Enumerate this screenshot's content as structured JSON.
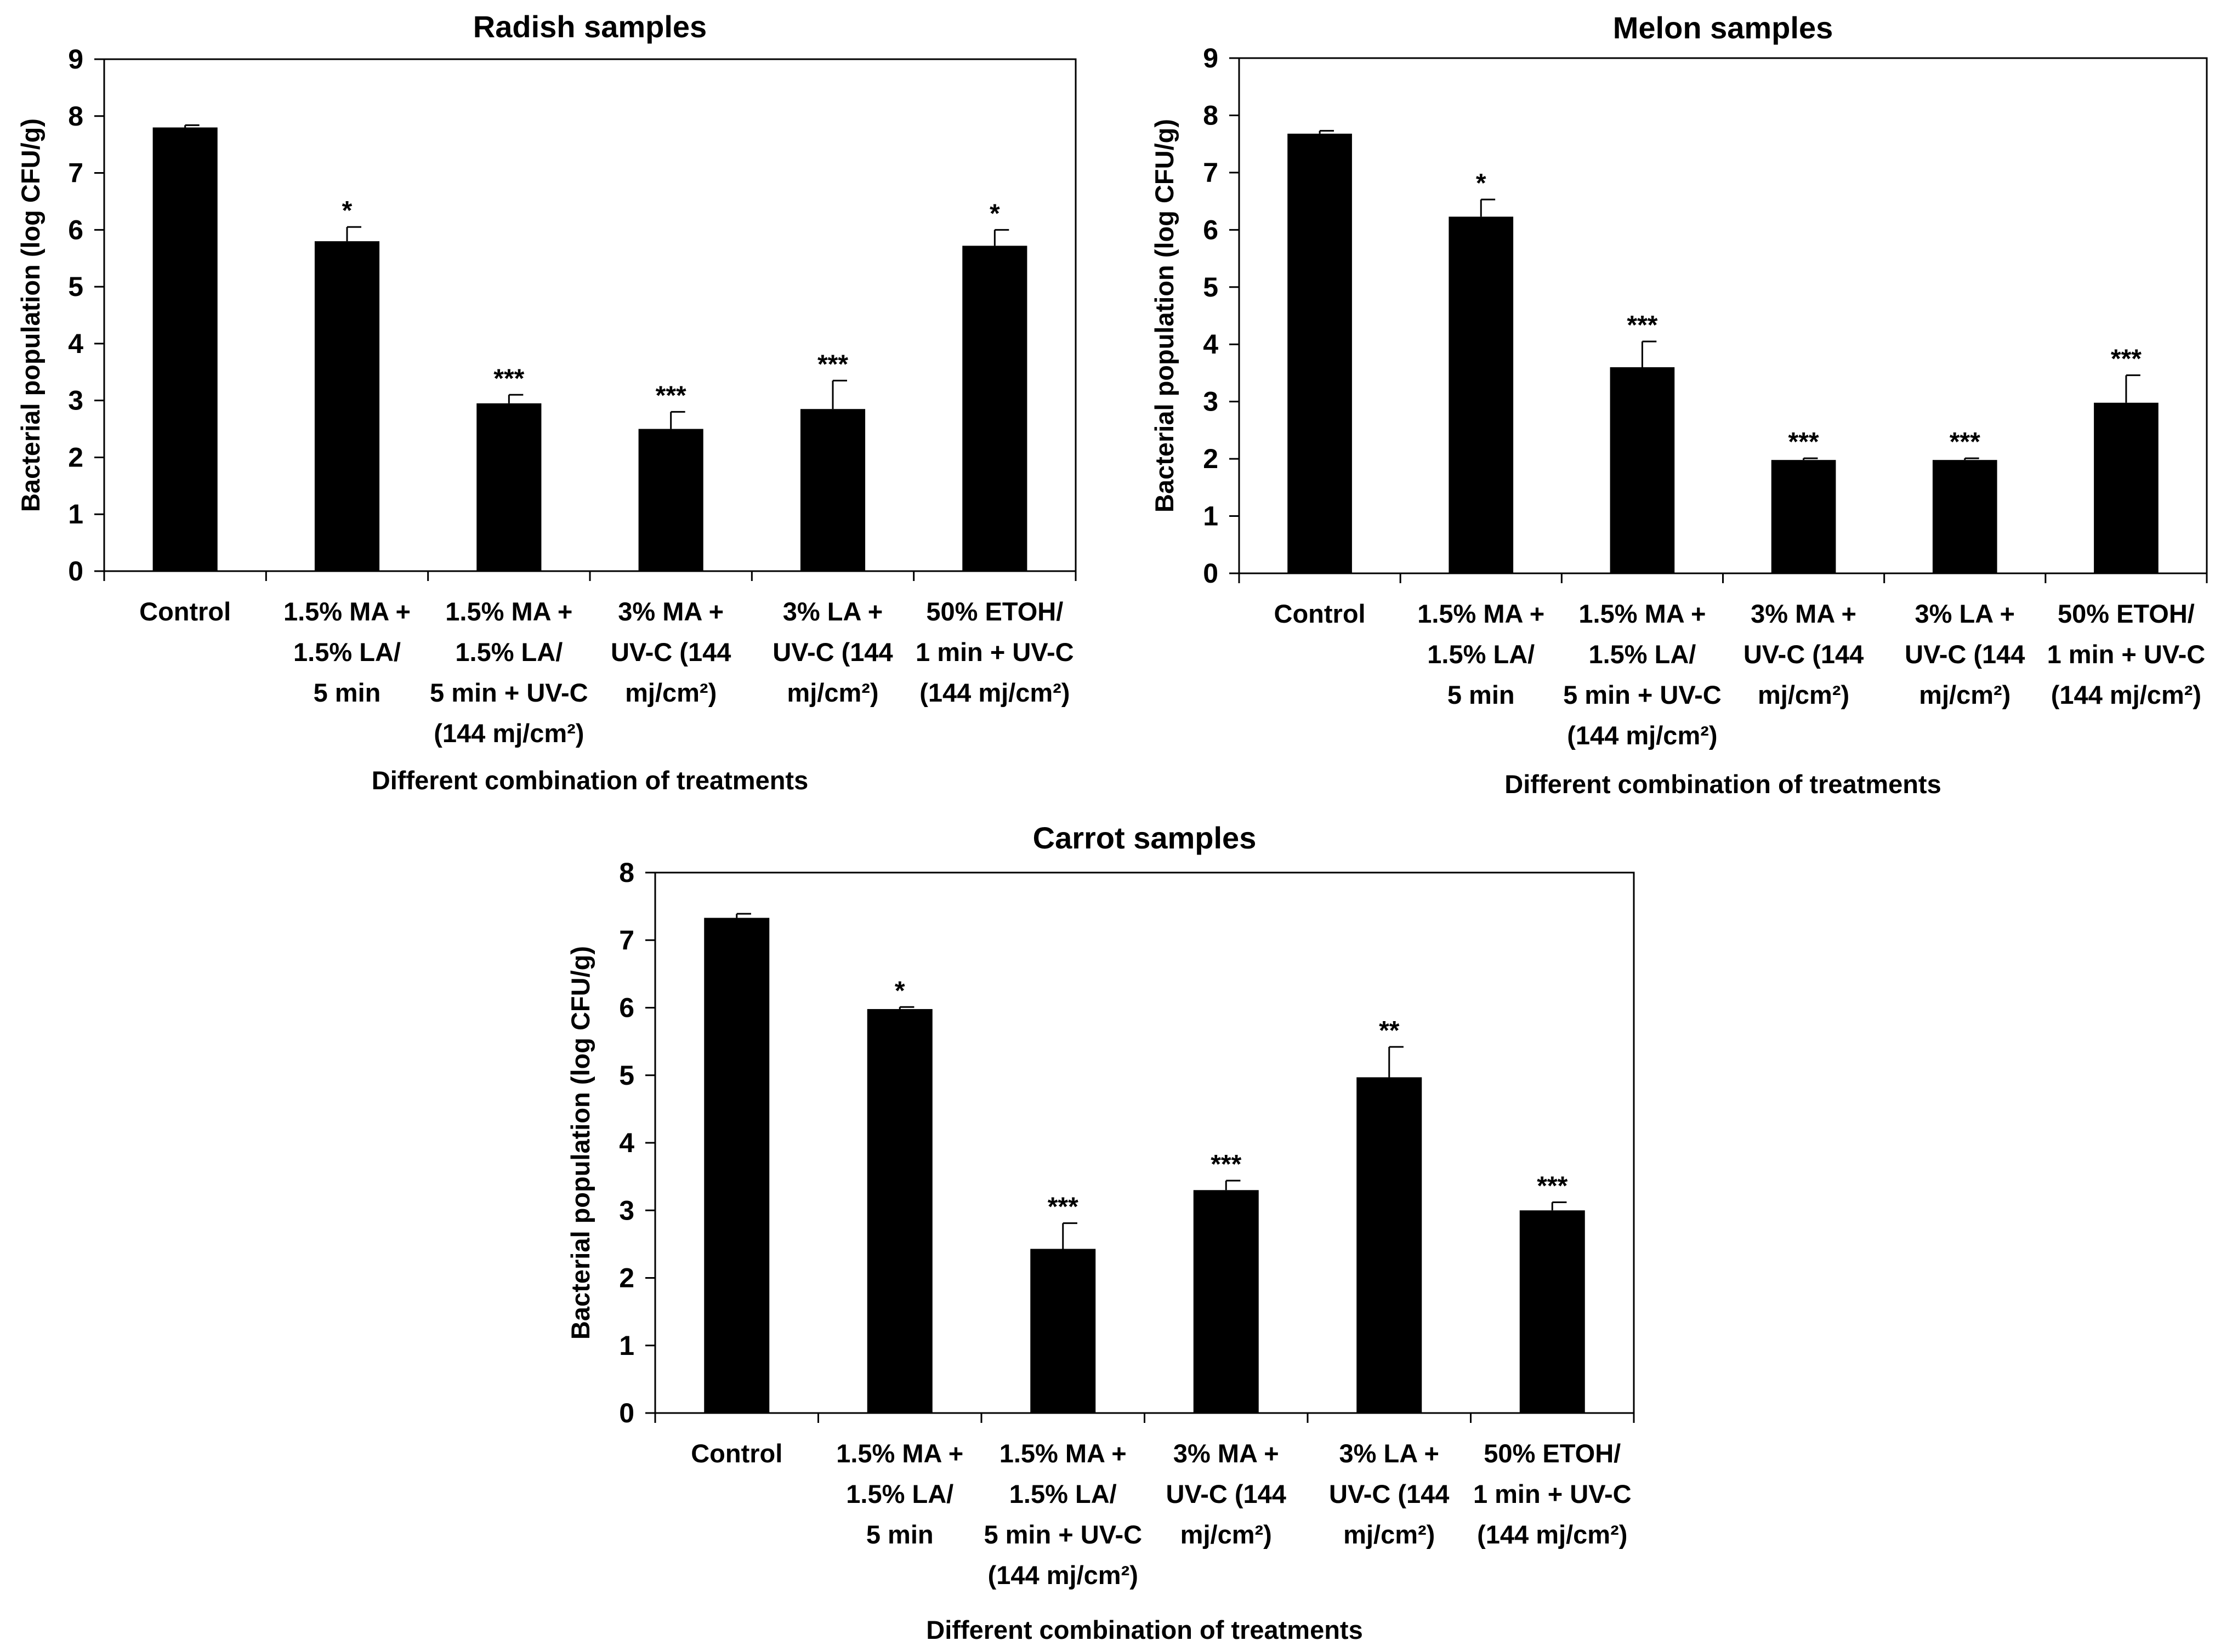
{
  "figure_caption": "",
  "chart_data": [
    {
      "type": "bar",
      "title": "Radish samples",
      "xlabel": "Different combination of treatments",
      "ylabel": "Bacterial population (log CFU/g)",
      "ylim": [
        0,
        9
      ],
      "yticks": [
        0,
        1,
        2,
        3,
        4,
        5,
        6,
        7,
        8,
        9
      ],
      "categories": [
        [
          "Control"
        ],
        [
          "1.5% MA +",
          "1.5% LA/",
          "5 min"
        ],
        [
          "1.5% MA +",
          "1.5% LA/",
          "5 min + UV-C",
          "(144 mj/cm²)"
        ],
        [
          "3% MA +",
          "UV-C (144",
          "mj/cm²)"
        ],
        [
          "3% LA +",
          "UV-C (144",
          "mj/cm²)"
        ],
        [
          "50% ETOH/",
          "1 min + UV-C",
          "(144 mj/cm²)"
        ]
      ],
      "values": [
        7.8,
        5.8,
        2.95,
        2.5,
        2.85,
        5.72
      ],
      "errors": [
        0.04,
        0.25,
        0.15,
        0.3,
        0.5,
        0.28
      ],
      "significance": [
        "",
        "*",
        "***",
        "***",
        "***",
        "*"
      ],
      "bar_color": "#000000"
    },
    {
      "type": "bar",
      "title": "Melon samples",
      "xlabel": "Different combination of treatments",
      "ylabel": "Bacterial population (log CFU/g)",
      "ylim": [
        0,
        9
      ],
      "yticks": [
        0,
        1,
        2,
        3,
        4,
        5,
        6,
        7,
        8,
        9
      ],
      "categories": [
        [
          "Control"
        ],
        [
          "1.5% MA +",
          "1.5% LA/",
          "5 min"
        ],
        [
          "1.5% MA +",
          "1.5% LA/",
          "5 min + UV-C",
          "(144 mj/cm²)"
        ],
        [
          "3% MA +",
          "UV-C (144",
          "mj/cm²)"
        ],
        [
          "3% LA +",
          "UV-C (144",
          "mj/cm²)"
        ],
        [
          "50% ETOH/",
          "1 min + UV-C",
          "(144 mj/cm²)"
        ]
      ],
      "values": [
        7.68,
        6.23,
        3.6,
        1.98,
        1.98,
        2.98
      ],
      "errors": [
        0.05,
        0.3,
        0.45,
        0.03,
        0.03,
        0.48
      ],
      "significance": [
        "",
        "*",
        "***",
        "***",
        "***",
        "***"
      ],
      "bar_color": "#000000"
    },
    {
      "type": "bar",
      "title": "Carrot samples",
      "xlabel": "Different combination of treatments",
      "ylabel": "Bacterial population (log CFU/g)",
      "ylim": [
        0,
        8
      ],
      "yticks": [
        0,
        1,
        2,
        3,
        4,
        5,
        6,
        7,
        8
      ],
      "categories": [
        [
          "Control"
        ],
        [
          "1.5% MA +",
          "1.5% LA/",
          "5 min"
        ],
        [
          "1.5% MA +",
          "1.5% LA/",
          "5 min + UV-C",
          "(144 mj/cm²)"
        ],
        [
          "3% MA +",
          "UV-C (144",
          "mj/cm²)"
        ],
        [
          "3% LA +",
          "UV-C (144",
          "mj/cm²)"
        ],
        [
          "50% ETOH/",
          "1 min + UV-C",
          "(144 mj/cm²)"
        ]
      ],
      "values": [
        7.33,
        5.98,
        2.43,
        3.3,
        4.97,
        3.0
      ],
      "errors": [
        0.06,
        0.03,
        0.38,
        0.14,
        0.45,
        0.12
      ],
      "significance": [
        "",
        "*",
        "***",
        "***",
        "**",
        "***"
      ],
      "bar_color": "#000000"
    }
  ]
}
